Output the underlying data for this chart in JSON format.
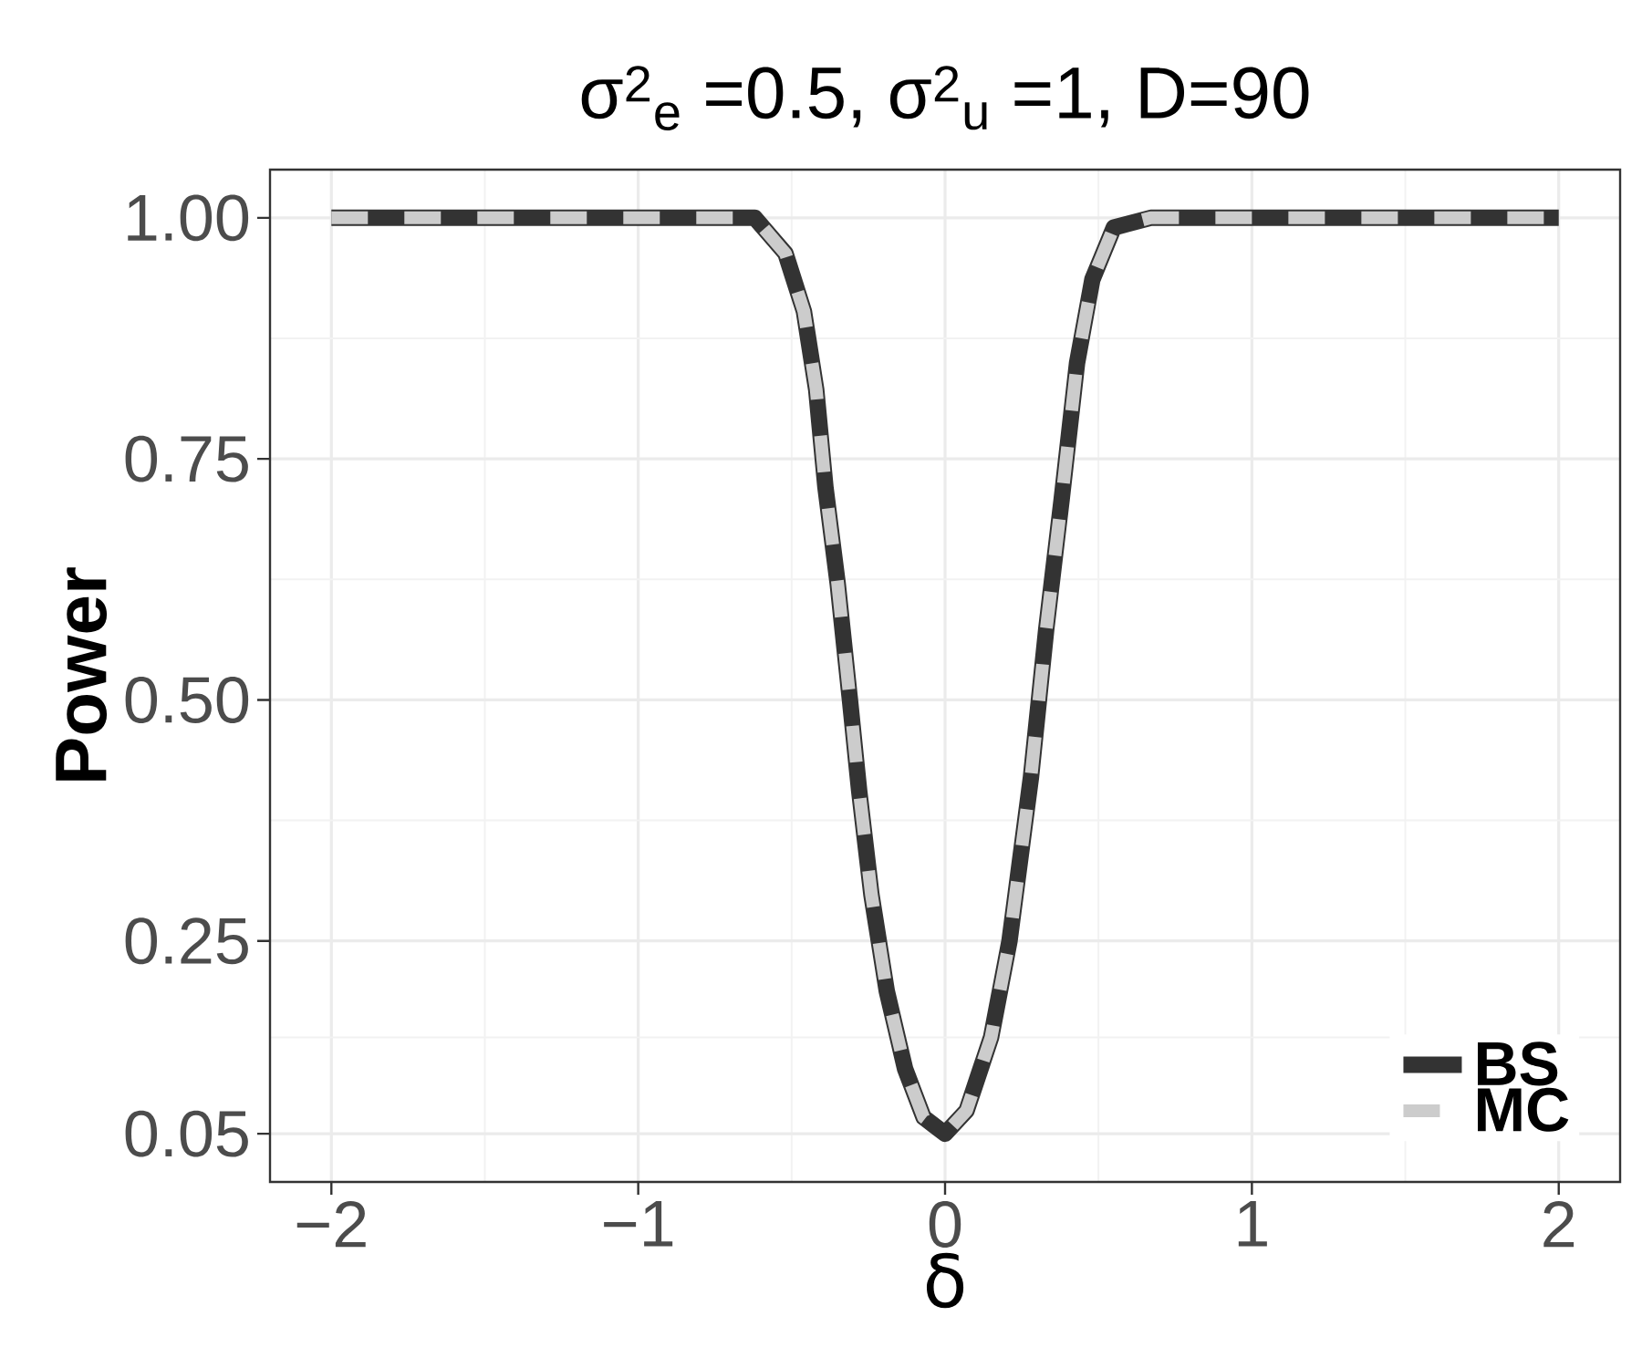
{
  "chart_data": {
    "type": "line",
    "title": "σ$^{2}$$_{e}$ =0.5, σ$^{2}$$_{u}$ =1, D=90",
    "xlabel": "δ",
    "ylabel": "Power",
    "xlim": [
      -2.2,
      2.2
    ],
    "ylim": [
      0,
      1.05
    ],
    "xticks": [
      {
        "value": -2,
        "label": "−2"
      },
      {
        "value": -1,
        "label": "−1"
      },
      0,
      1,
      2
    ],
    "yticks": [
      0.05,
      {
        "value": 0.25,
        "label": "0.25"
      },
      {
        "value": 0.5,
        "label": "0.50"
      },
      {
        "value": 0.75,
        "label": "0.75"
      },
      {
        "value": 1,
        "label": "1.00"
      }
    ],
    "x": [
      -2,
      -1,
      -0.62,
      -0.52,
      -0.46,
      -0.42,
      -0.39,
      -0.35,
      -0.31,
      -0.28,
      -0.24,
      -0.19,
      -0.13,
      -0.07,
      0,
      0.07,
      0.15,
      0.21,
      0.28,
      0.33,
      0.38,
      0.43,
      0.48,
      0.55,
      0.67,
      1,
      2
    ],
    "series": [
      {
        "name": "BS",
        "color": "#333333",
        "line_style": "solid",
        "values": [
          1,
          1,
          1,
          0.963,
          0.903,
          0.822,
          0.721,
          0.621,
          0.5,
          0.406,
          0.298,
          0.198,
          0.117,
          0.067,
          0.05,
          0.074,
          0.15,
          0.25,
          0.42,
          0.574,
          0.708,
          0.849,
          0.936,
          0.99,
          1,
          1,
          1
        ]
      },
      {
        "name": "MC",
        "color": "#cccccc",
        "line_style": "dashed",
        "values": [
          1,
          1,
          1,
          0.963,
          0.903,
          0.822,
          0.721,
          0.621,
          0.5,
          0.406,
          0.298,
          0.198,
          0.117,
          0.067,
          0.05,
          0.074,
          0.15,
          0.25,
          0.42,
          0.574,
          0.708,
          0.849,
          0.936,
          0.99,
          1,
          1,
          1
        ]
      }
    ],
    "grid": true,
    "legend": "bottom right"
  }
}
